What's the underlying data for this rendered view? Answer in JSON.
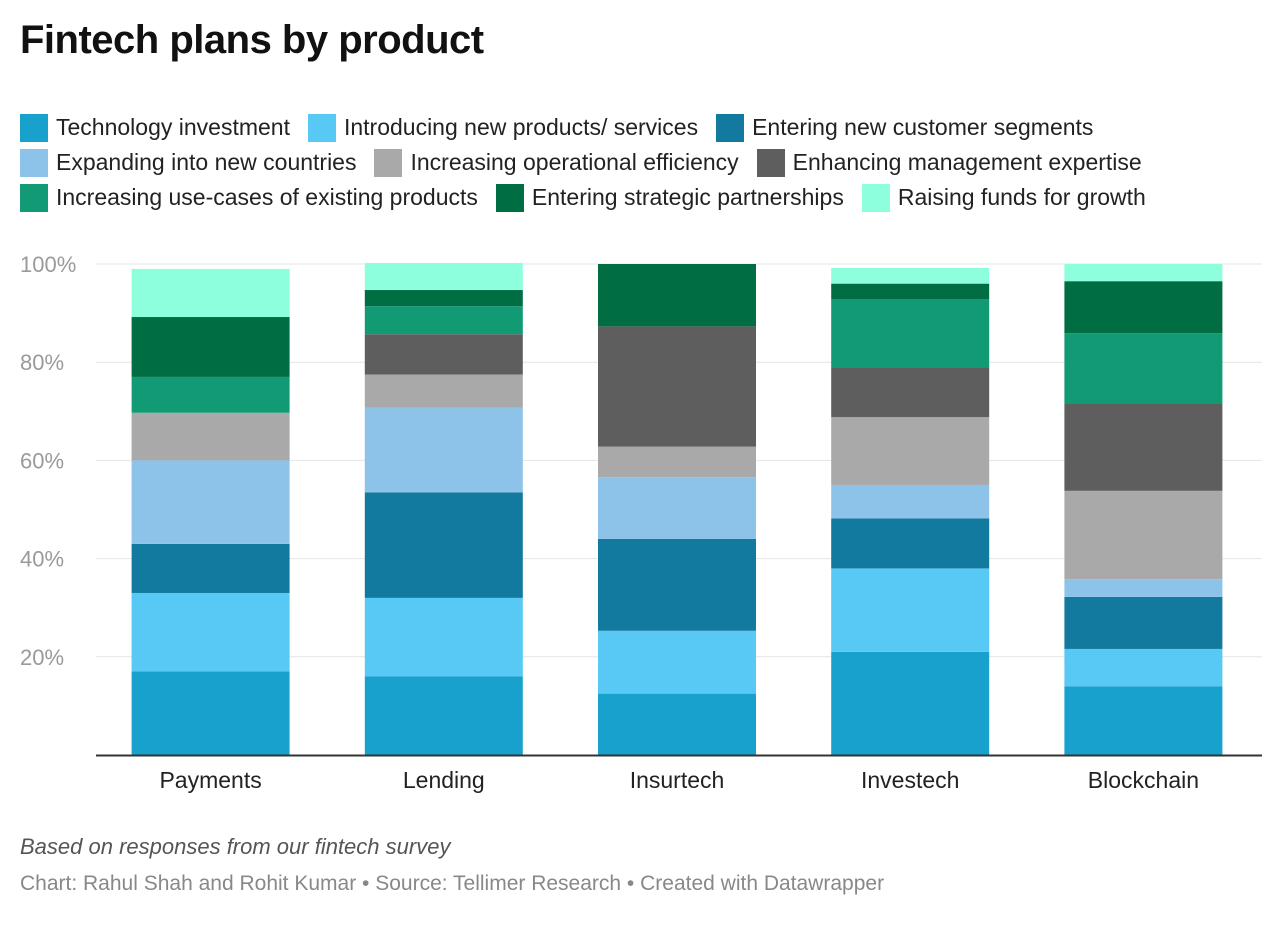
{
  "chart_data": {
    "type": "bar",
    "stacked": true,
    "title": "Fintech plans by product",
    "categories": [
      "Payments",
      "Lending",
      "Insurtech",
      "Investech",
      "Blockchain"
    ],
    "ylim": [
      0,
      100
    ],
    "yticks": [
      20,
      40,
      60,
      80,
      100
    ],
    "ytick_labels": [
      "20%",
      "40%",
      "60%",
      "80%",
      "100%"
    ],
    "legend_position": "top",
    "series": [
      {
        "name": "Technology investment",
        "color": "#18a1cd",
        "values": [
          17,
          16,
          12.5,
          21,
          14
        ]
      },
      {
        "name": "Introducing new products/ services",
        "color": "#58c8f5",
        "values": [
          16,
          16,
          12.8,
          17,
          7.6
        ]
      },
      {
        "name": "Entering new customer segments",
        "color": "#127a9e",
        "values": [
          10,
          21.5,
          18.7,
          10.2,
          10.6
        ]
      },
      {
        "name": "Expanding into new countries",
        "color": "#8dc3e8",
        "values": [
          17,
          17.2,
          12.6,
          6.8,
          3.6
        ]
      },
      {
        "name": "Increasing operational efficiency",
        "color": "#a9a9a9",
        "values": [
          9.7,
          6.8,
          6.2,
          13.8,
          18
        ]
      },
      {
        "name": "Enhancing management expertise",
        "color": "#5e5e5e",
        "values": [
          0,
          8.2,
          24.5,
          10.2,
          17.8
        ]
      },
      {
        "name": "Increasing use-cases of existing products",
        "color": "#119a73",
        "values": [
          7.3,
          5.7,
          0,
          13.8,
          14.3
        ]
      },
      {
        "name": "Entering strategic partnerships",
        "color": "#006d43",
        "values": [
          12.2,
          3.3,
          12.7,
          3.2,
          10.6
        ]
      },
      {
        "name": "Raising funds for growth",
        "color": "#8effdc",
        "values": [
          9.8,
          5.5,
          0,
          3.2,
          3.5
        ]
      }
    ],
    "note": "Based on responses from our fintech survey",
    "credit": "Chart: Rahul Shah and Rohit Kumar • Source: Tellimer Research • Created with Datawrapper"
  }
}
